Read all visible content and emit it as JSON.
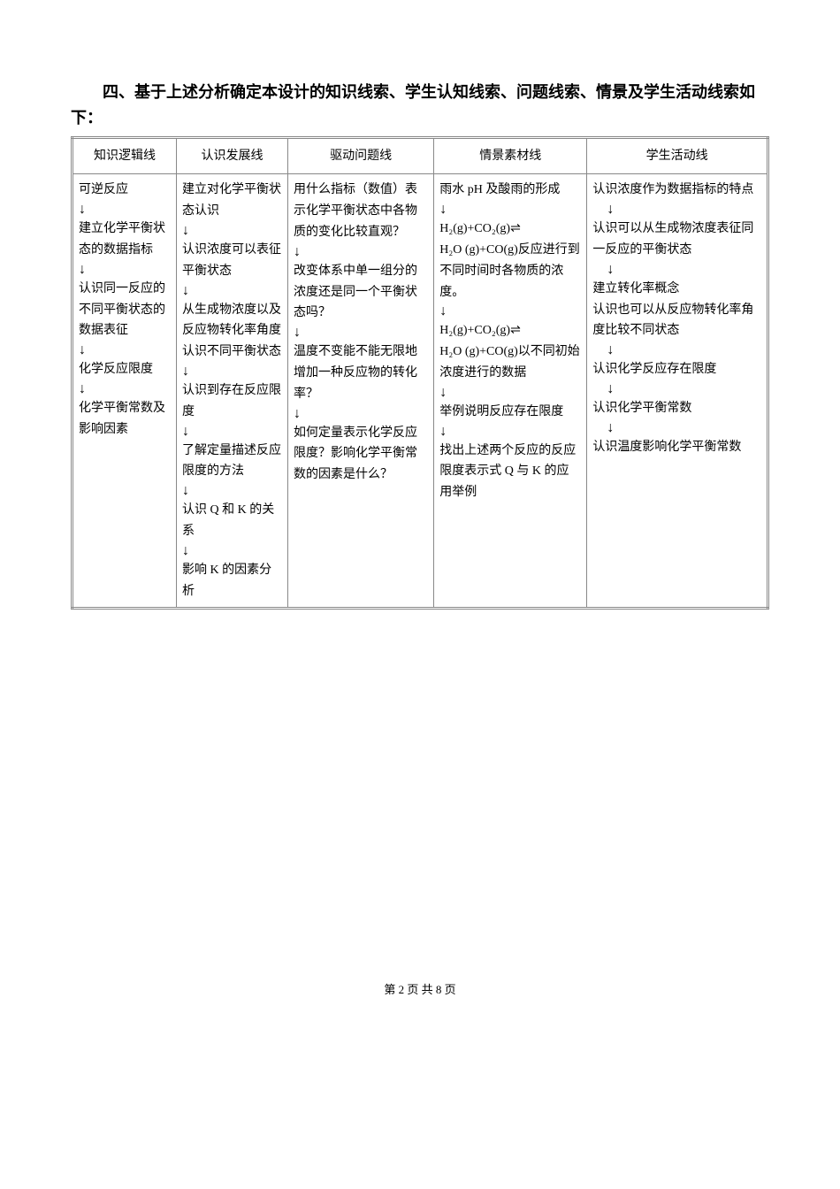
{
  "heading": "四、基于上述分析确定本设计的知识线索、学生认知线索、问题线索、情景及学生活动线索如下：",
  "table": {
    "headers": [
      "知识逻辑线",
      "认识发展线",
      "驱动问题线",
      "情景素材线",
      "学生活动线"
    ],
    "col1": {
      "p1": "可逆反应",
      "p2": "建立化学平衡状态的数据指标",
      "p3": "认识同一反应的不同平衡状态的数据表征",
      "p4": "化学反应限度",
      "p5": "化学平衡常数及影响因素"
    },
    "col2": {
      "p1": "建立对化学平衡状态认识",
      "p2": "认识浓度可以表征平衡状态",
      "p3": "从生成物浓度以及反应物转化率角度认识不同平衡状态",
      "p4": "认识到存在反应限度",
      "p5": "了解定量描述反应限度的方法",
      "p6": "认识 Q 和 K 的关系",
      "p7": "影响 K 的因素分析"
    },
    "col3": {
      "p1": "用什么指标（数值）表示化学平衡状态中各物质的变化比较直观？",
      "p2": "改变体系中单一组分的浓度还是同一个平衡状态吗？",
      "p3": "温度不变能不能无限地增加一种反应物的转化率？",
      "p4": "如何定量表示化学反应限度？影响化学平衡常数的因素是什么？"
    },
    "col4": {
      "p1": "雨水 pH 及酸雨的形成",
      "p2a": "H₂(g)+CO₂(g)⇌",
      "p2b": "H₂O (g)+CO(g)反应进行到不同时间时各物质的浓度。",
      "p3a": "H₂(g)+CO₂(g)⇌",
      "p3b": "H₂O (g)+CO(g)以不同初始浓度进行的数据",
      "p4": "举例说明反应存在限度",
      "p5": "找出上述两个反应的反应限度表示式 Q 与 K 的应用举例"
    },
    "col5": {
      "p1": "认识浓度作为数据指标的特点",
      "p2": "认识可以从生成物浓度表征同一反应的平衡状态",
      "p3": "建立转化率概念",
      "p4": "认识也可以从反应物转化率角度比较不同状态",
      "p5": "认识化学反应存在限度",
      "p6": "认识化学平衡常数",
      "p7": "认识温度影响化学平衡常数"
    }
  },
  "footer": "第 2 页 共 8 页",
  "arrow_glyph": "↓"
}
